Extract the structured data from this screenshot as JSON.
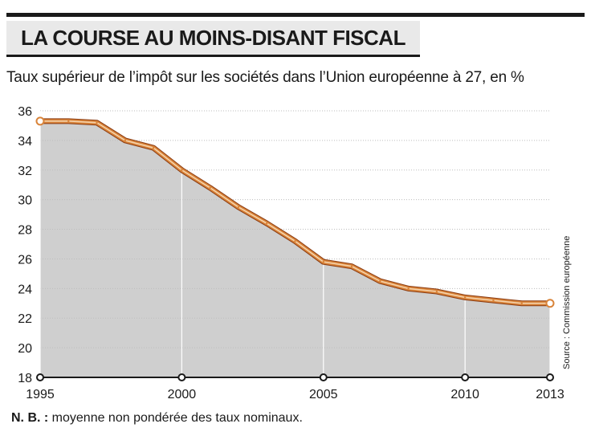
{
  "header": {
    "title": "LA COURSE AU MOINS-DISANT FISCAL",
    "subtitle": "Taux supérieur de l’impôt sur les sociétés dans l’Union européenne à 27, en %"
  },
  "footer": {
    "note_label": "N. B. :",
    "note_text": " moyenne non pondérée des taux nominaux.",
    "source": "Source : Commission européenne"
  },
  "chart_data": {
    "type": "area",
    "x": [
      1995,
      1996,
      1997,
      1998,
      1999,
      2000,
      2001,
      2002,
      2003,
      2004,
      2005,
      2006,
      2007,
      2008,
      2009,
      2010,
      2011,
      2012,
      2013
    ],
    "values": [
      35.3,
      35.3,
      35.2,
      34.0,
      33.5,
      32.0,
      30.8,
      29.5,
      28.4,
      27.2,
      25.8,
      25.5,
      24.5,
      24.0,
      23.8,
      23.4,
      23.2,
      23.0,
      23.0
    ],
    "xticks": [
      1995,
      2000,
      2005,
      2010,
      2013
    ],
    "yticks": [
      18,
      20,
      22,
      24,
      26,
      28,
      30,
      32,
      34,
      36
    ],
    "xlim": [
      1995,
      2013
    ],
    "ylim": [
      18,
      36
    ],
    "grid": true,
    "colors": {
      "line": "#d9843a",
      "line_outline": "#8a3a10",
      "area": "#cfcfcf",
      "grid": "#bdbdbd",
      "marker": "#ffffff"
    }
  }
}
